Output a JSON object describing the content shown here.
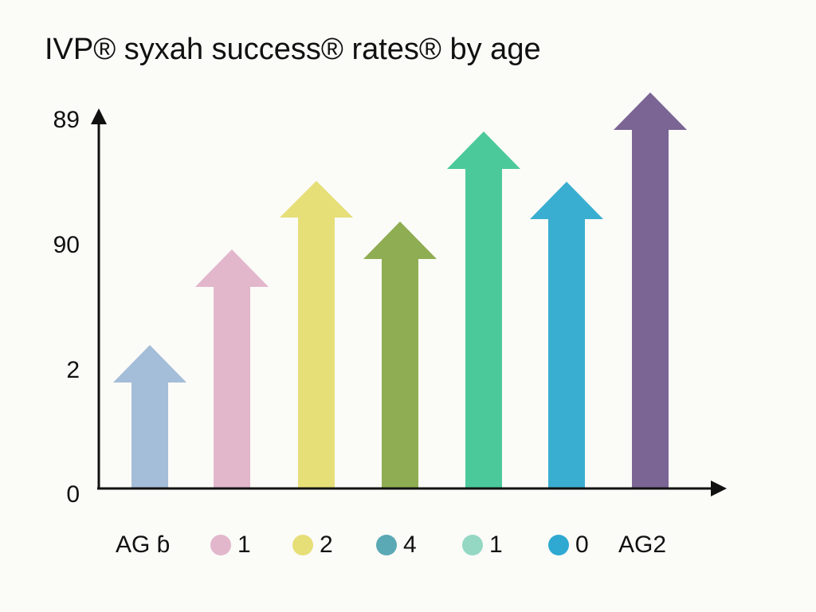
{
  "title": "IVP® syxah success® rates® by age",
  "y_axis_labels": [
    "89",
    "90",
    "2",
    "0"
  ],
  "legend": [
    {
      "label": "AG ɓ"
    },
    {
      "label": "1",
      "color": "#e2b6cb"
    },
    {
      "label": "2",
      "color": "#e6df78"
    },
    {
      "label": "4",
      "color": "#5aa9b5"
    },
    {
      "label": "1",
      "color": "#94d8c4"
    },
    {
      "label": "0",
      "color": "#2fa9d2"
    },
    {
      "label": "AG2"
    }
  ]
}
